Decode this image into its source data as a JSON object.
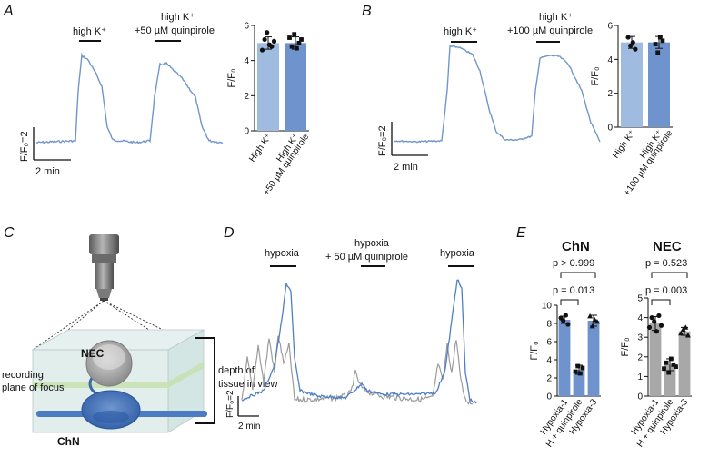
{
  "panels": {
    "A": {
      "letter": "A",
      "label_high_k": "high K⁺",
      "label_high_k_quin_1": "high K⁺",
      "label_high_k_quin_2": "+50 µM quinpirole",
      "scale_y": "F/F₀=2",
      "scale_x": "2 min"
    },
    "B": {
      "letter": "B",
      "label_high_k": "high K⁺",
      "label_high_k_quin_1": "high K⁺",
      "label_high_k_quin_2": "+100 µM quinpirole",
      "scale_y": "F/F₀=2",
      "scale_x": "2 min"
    },
    "C": {
      "letter": "C",
      "nec": "NEC",
      "chn": "ChN",
      "recording_1": "recording",
      "recording_2": "plane of focus",
      "depth_1": "depth of",
      "depth_2": "tissue in view"
    },
    "D": {
      "letter": "D",
      "hypoxia_1": "hypoxia",
      "hypoxia_quin_1": "hypoxia",
      "hypoxia_quin_2": "+ 50 µM quiniprole",
      "hypoxia_2": "hypoxia",
      "scale_y": "F/F₀=2",
      "scale_x": "2 min"
    },
    "E": {
      "letter": "E",
      "chn_title": "ChN",
      "nec_title": "NEC",
      "chn_p_top": "p > 0.999",
      "chn_p_bottom": "p = 0.013",
      "nec_p_top": "p = 0.523",
      "nec_p_bottom": "p = 0.003"
    }
  },
  "colors": {
    "trace_blue": "#7096cc",
    "bar_light_blue": "#9fbbe0",
    "bar_blue": "#6f93cc",
    "bar_grey": "#a8a8a8",
    "trace_grey": "#9b9b9b"
  },
  "chart_data": [
    {
      "type": "bar",
      "panel": "A",
      "categories": [
        "High K⁺",
        "High K⁺ +50 µM quinpirole"
      ],
      "values": [
        5.0,
        5.0
      ],
      "errors": [
        0.35,
        0.35
      ],
      "points": [
        [
          4.6,
          5.2,
          5.6,
          4.9,
          4.8,
          5.1
        ],
        [
          5.3,
          4.8,
          5.5,
          4.7,
          5.0,
          5.2
        ]
      ],
      "ylabel": "F/F₀",
      "ylim": [
        0,
        6
      ],
      "yticks": [
        0,
        2,
        4,
        6
      ]
    },
    {
      "type": "bar",
      "panel": "B",
      "categories": [
        "High K⁺",
        "High K⁺ +100 µM quinpirole"
      ],
      "values": [
        5.0,
        5.0
      ],
      "errors": [
        0.35,
        0.35
      ],
      "points": [
        [
          5.3,
          4.8,
          5.0,
          4.6
        ],
        [
          4.9,
          4.4,
          5.3,
          5.1
        ]
      ],
      "ylabel": "F/F₀",
      "ylim": [
        0,
        6
      ],
      "yticks": [
        0,
        2,
        4,
        6
      ]
    },
    {
      "type": "bar",
      "panel": "E-ChN",
      "categories": [
        "Hypoxia-1",
        "H + quinpirole",
        "Hypoxia-3"
      ],
      "values": [
        8.4,
        2.9,
        8.3
      ],
      "errors": [
        0.4,
        0.5,
        0.6
      ],
      "points": [
        [
          8.6,
          8.3,
          8.9,
          7.9
        ],
        [
          2.7,
          3.3,
          2.5,
          3.1
        ],
        [
          8.8,
          7.7,
          8.4,
          8.2
        ]
      ],
      "ylabel": "F/F₀",
      "ylim": [
        0,
        10
      ],
      "yticks": [
        0,
        2,
        4,
        6,
        8,
        10
      ]
    },
    {
      "type": "bar",
      "panel": "E-NEC",
      "categories": [
        "Hypoxia-1",
        "H + quinpirole",
        "Hypoxia-3"
      ],
      "values": [
        3.7,
        1.6,
        3.3
      ],
      "errors": [
        0.35,
        0.3,
        0.2
      ],
      "points": [
        [
          3.5,
          4.0,
          3.8,
          3.3,
          4.1,
          3.6
        ],
        [
          1.4,
          1.7,
          1.2,
          1.9,
          1.6,
          1.5
        ],
        [
          3.2,
          3.4,
          3.5,
          3.1
        ]
      ],
      "ylabel": "F/F₀",
      "ylim": [
        0,
        5
      ],
      "yticks": [
        0,
        1,
        2,
        3,
        4,
        5
      ]
    }
  ]
}
